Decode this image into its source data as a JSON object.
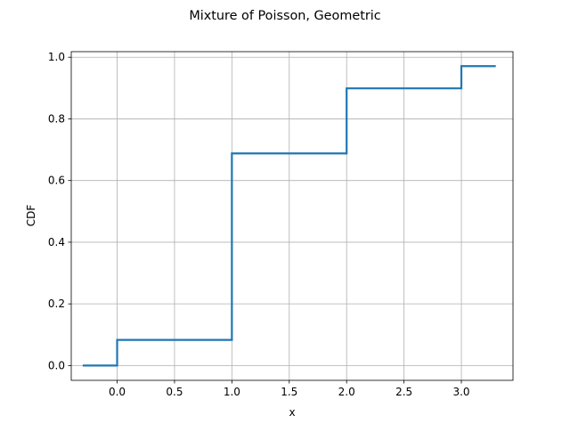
{
  "chart_data": {
    "type": "line",
    "drawstyle": "steps-post",
    "title": "Mixture of Poisson, Geometric",
    "xlabel": "x",
    "ylabel": "CDF",
    "xlim": [
      -0.4,
      3.45
    ],
    "ylim": [
      -0.048,
      1.018
    ],
    "xticks": [
      0.0,
      0.5,
      1.0,
      1.5,
      2.0,
      2.5,
      3.0
    ],
    "xtick_labels": [
      "0.0",
      "0.5",
      "1.0",
      "1.5",
      "2.0",
      "2.5",
      "3.0"
    ],
    "yticks": [
      0.0,
      0.2,
      0.4,
      0.6,
      0.8,
      1.0
    ],
    "ytick_labels": [
      "0.0",
      "0.2",
      "0.4",
      "0.6",
      "0.8",
      "1.0"
    ],
    "grid": true,
    "series": [
      {
        "x": [
          -0.3,
          0.0,
          1.0,
          2.0,
          3.0,
          3.3
        ],
        "y": [
          0.0,
          0.083,
          0.688,
          0.899,
          0.971,
          0.971
        ],
        "color": "#1f77b4"
      }
    ]
  }
}
